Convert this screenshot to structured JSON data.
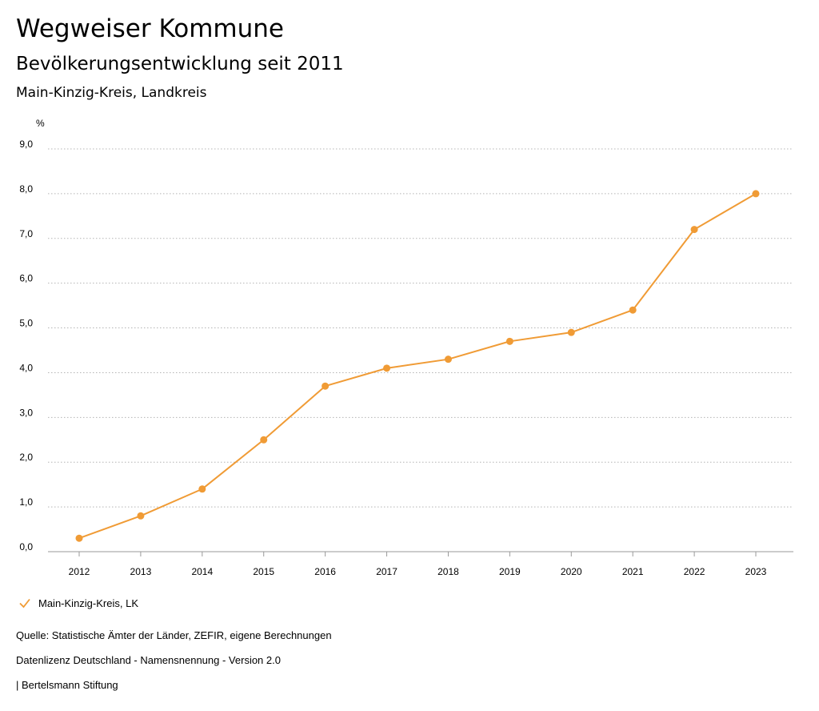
{
  "header": {
    "title": "Wegweiser Kommune",
    "subtitle": "Bevölkerungsentwicklung seit 2011",
    "region": "Main-Kinzig-Kreis, Landkreis"
  },
  "chart_data": {
    "type": "line",
    "title": "Bevölkerungsentwicklung seit 2011",
    "xlabel": "",
    "ylabel": "%",
    "ylim": [
      0,
      9
    ],
    "yticks": [
      "0,0",
      "1,0",
      "2,0",
      "3,0",
      "4,0",
      "5,0",
      "6,0",
      "7,0",
      "8,0",
      "9,0"
    ],
    "categories": [
      "2012",
      "2013",
      "2014",
      "2015",
      "2016",
      "2017",
      "2018",
      "2019",
      "2020",
      "2021",
      "2022",
      "2023"
    ],
    "series": [
      {
        "name": "Main-Kinzig-Kreis, LK",
        "color": "#f09b35",
        "values": [
          0.3,
          0.8,
          1.4,
          2.5,
          3.7,
          4.1,
          4.3,
          4.7,
          4.9,
          5.4,
          7.2,
          8.0
        ]
      }
    ],
    "grid": true,
    "legend": "bottom-left"
  },
  "legend": {
    "label": "Main-Kinzig-Kreis, LK",
    "icon": "check-icon"
  },
  "footer": {
    "source": "Quelle: Statistische Ämter der Länder, ZEFIR, eigene Berechnungen",
    "license": "Datenlizenz Deutschland - Namensnennung - Version 2.0",
    "credit": "| Bertelsmann Stiftung"
  }
}
